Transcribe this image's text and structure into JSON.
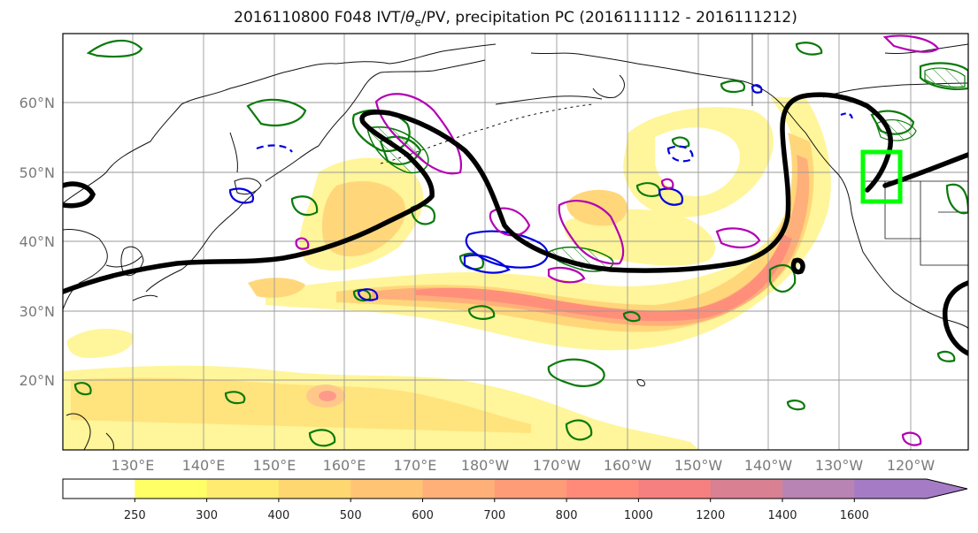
{
  "title": {
    "prefix": "2016110800 F048 IVT/",
    "theta": "θ",
    "theta_sub": "e",
    "suffix": "/PV, precipitation PC (2016111112 - 2016111212)"
  },
  "axes": {
    "lat_labels": [
      "60°N",
      "50°N",
      "40°N",
      "30°N",
      "20°N"
    ],
    "lon_labels": [
      "130°E",
      "140°E",
      "150°E",
      "160°E",
      "170°E",
      "180°W",
      "170°W",
      "160°W",
      "150°W",
      "140°W",
      "130°W",
      "120°W"
    ]
  },
  "colorbar": {
    "levels": [
      "250",
      "300",
      "400",
      "500",
      "600",
      "700",
      "800",
      "1000",
      "1200",
      "1400",
      "1600"
    ],
    "colors": [
      "#ffffff",
      "#ffff66",
      "#ffeb70",
      "#ffd770",
      "#ffc474",
      "#ffb078",
      "#ff9c78",
      "#ff8a7a",
      "#f5807f",
      "#d98092",
      "#b884b4",
      "#a67bc6"
    ]
  },
  "colors": {
    "ivt_outline": "#000000",
    "pv_contour": "#b400b4",
    "theta_warm": "#0a7a0a",
    "theta_cold": "#0000e0",
    "region_box": "#00ff00"
  }
}
